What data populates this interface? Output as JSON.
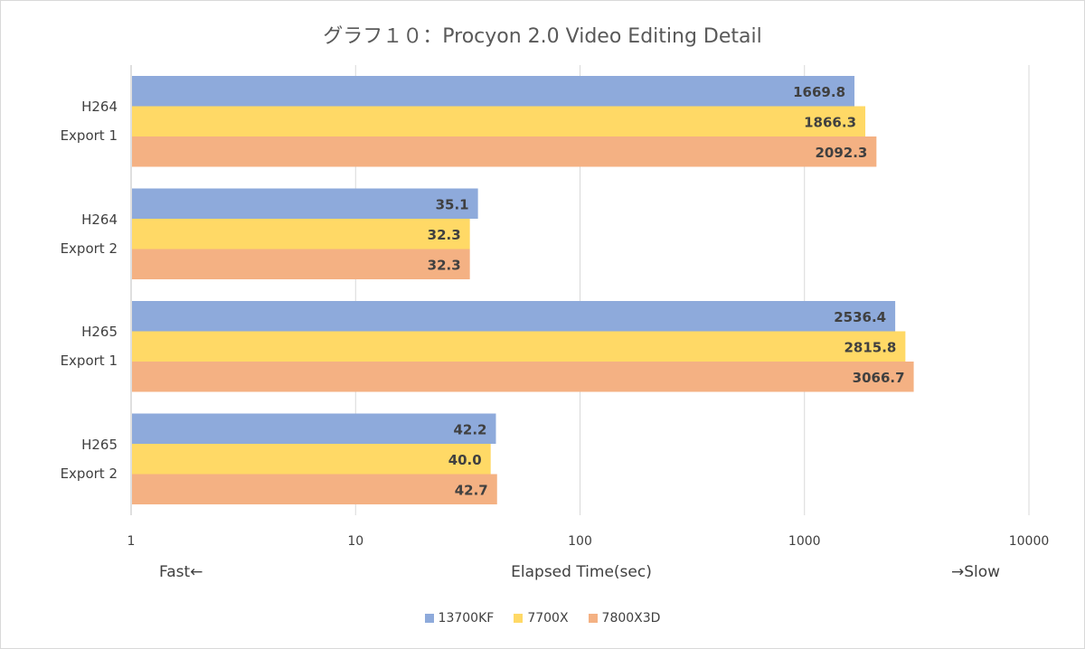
{
  "chart_data": {
    "type": "bar",
    "orientation": "horizontal",
    "title": "グラフ１０：Procyon 2.0 Video Editing Detail",
    "categories": [
      [
        "H264",
        "Export 1"
      ],
      [
        "H264",
        "Export 2"
      ],
      [
        "H265",
        "Export 1"
      ],
      [
        "H265",
        "Export 2"
      ]
    ],
    "series": [
      {
        "name": "13700KF",
        "color": "#8eaadb",
        "values": [
          1669.8,
          35.1,
          2536.4,
          42.2
        ]
      },
      {
        "name": "7700X",
        "color": "#ffd966",
        "values": [
          1866.3,
          32.3,
          2815.8,
          40.0
        ]
      },
      {
        "name": "7800X3D",
        "color": "#f4b183",
        "values": [
          2092.3,
          32.3,
          3066.7,
          42.7
        ]
      }
    ],
    "value_labels": [
      [
        "1669.8",
        "35.1",
        "2536.4",
        "42.2"
      ],
      [
        "1866.3",
        "32.3",
        "2815.8",
        "40.0"
      ],
      [
        "2092.3",
        "32.3",
        "3066.7",
        "42.7"
      ]
    ],
    "xscale": "log",
    "xlim": [
      1,
      10000
    ],
    "xticks": [
      "1",
      "10",
      "100",
      "1000",
      "10000"
    ],
    "xlabel": "Elapsed Time(sec)",
    "left_note": "Fast←",
    "right_note": "→Slow",
    "grid": true,
    "legend_position": "bottom"
  }
}
